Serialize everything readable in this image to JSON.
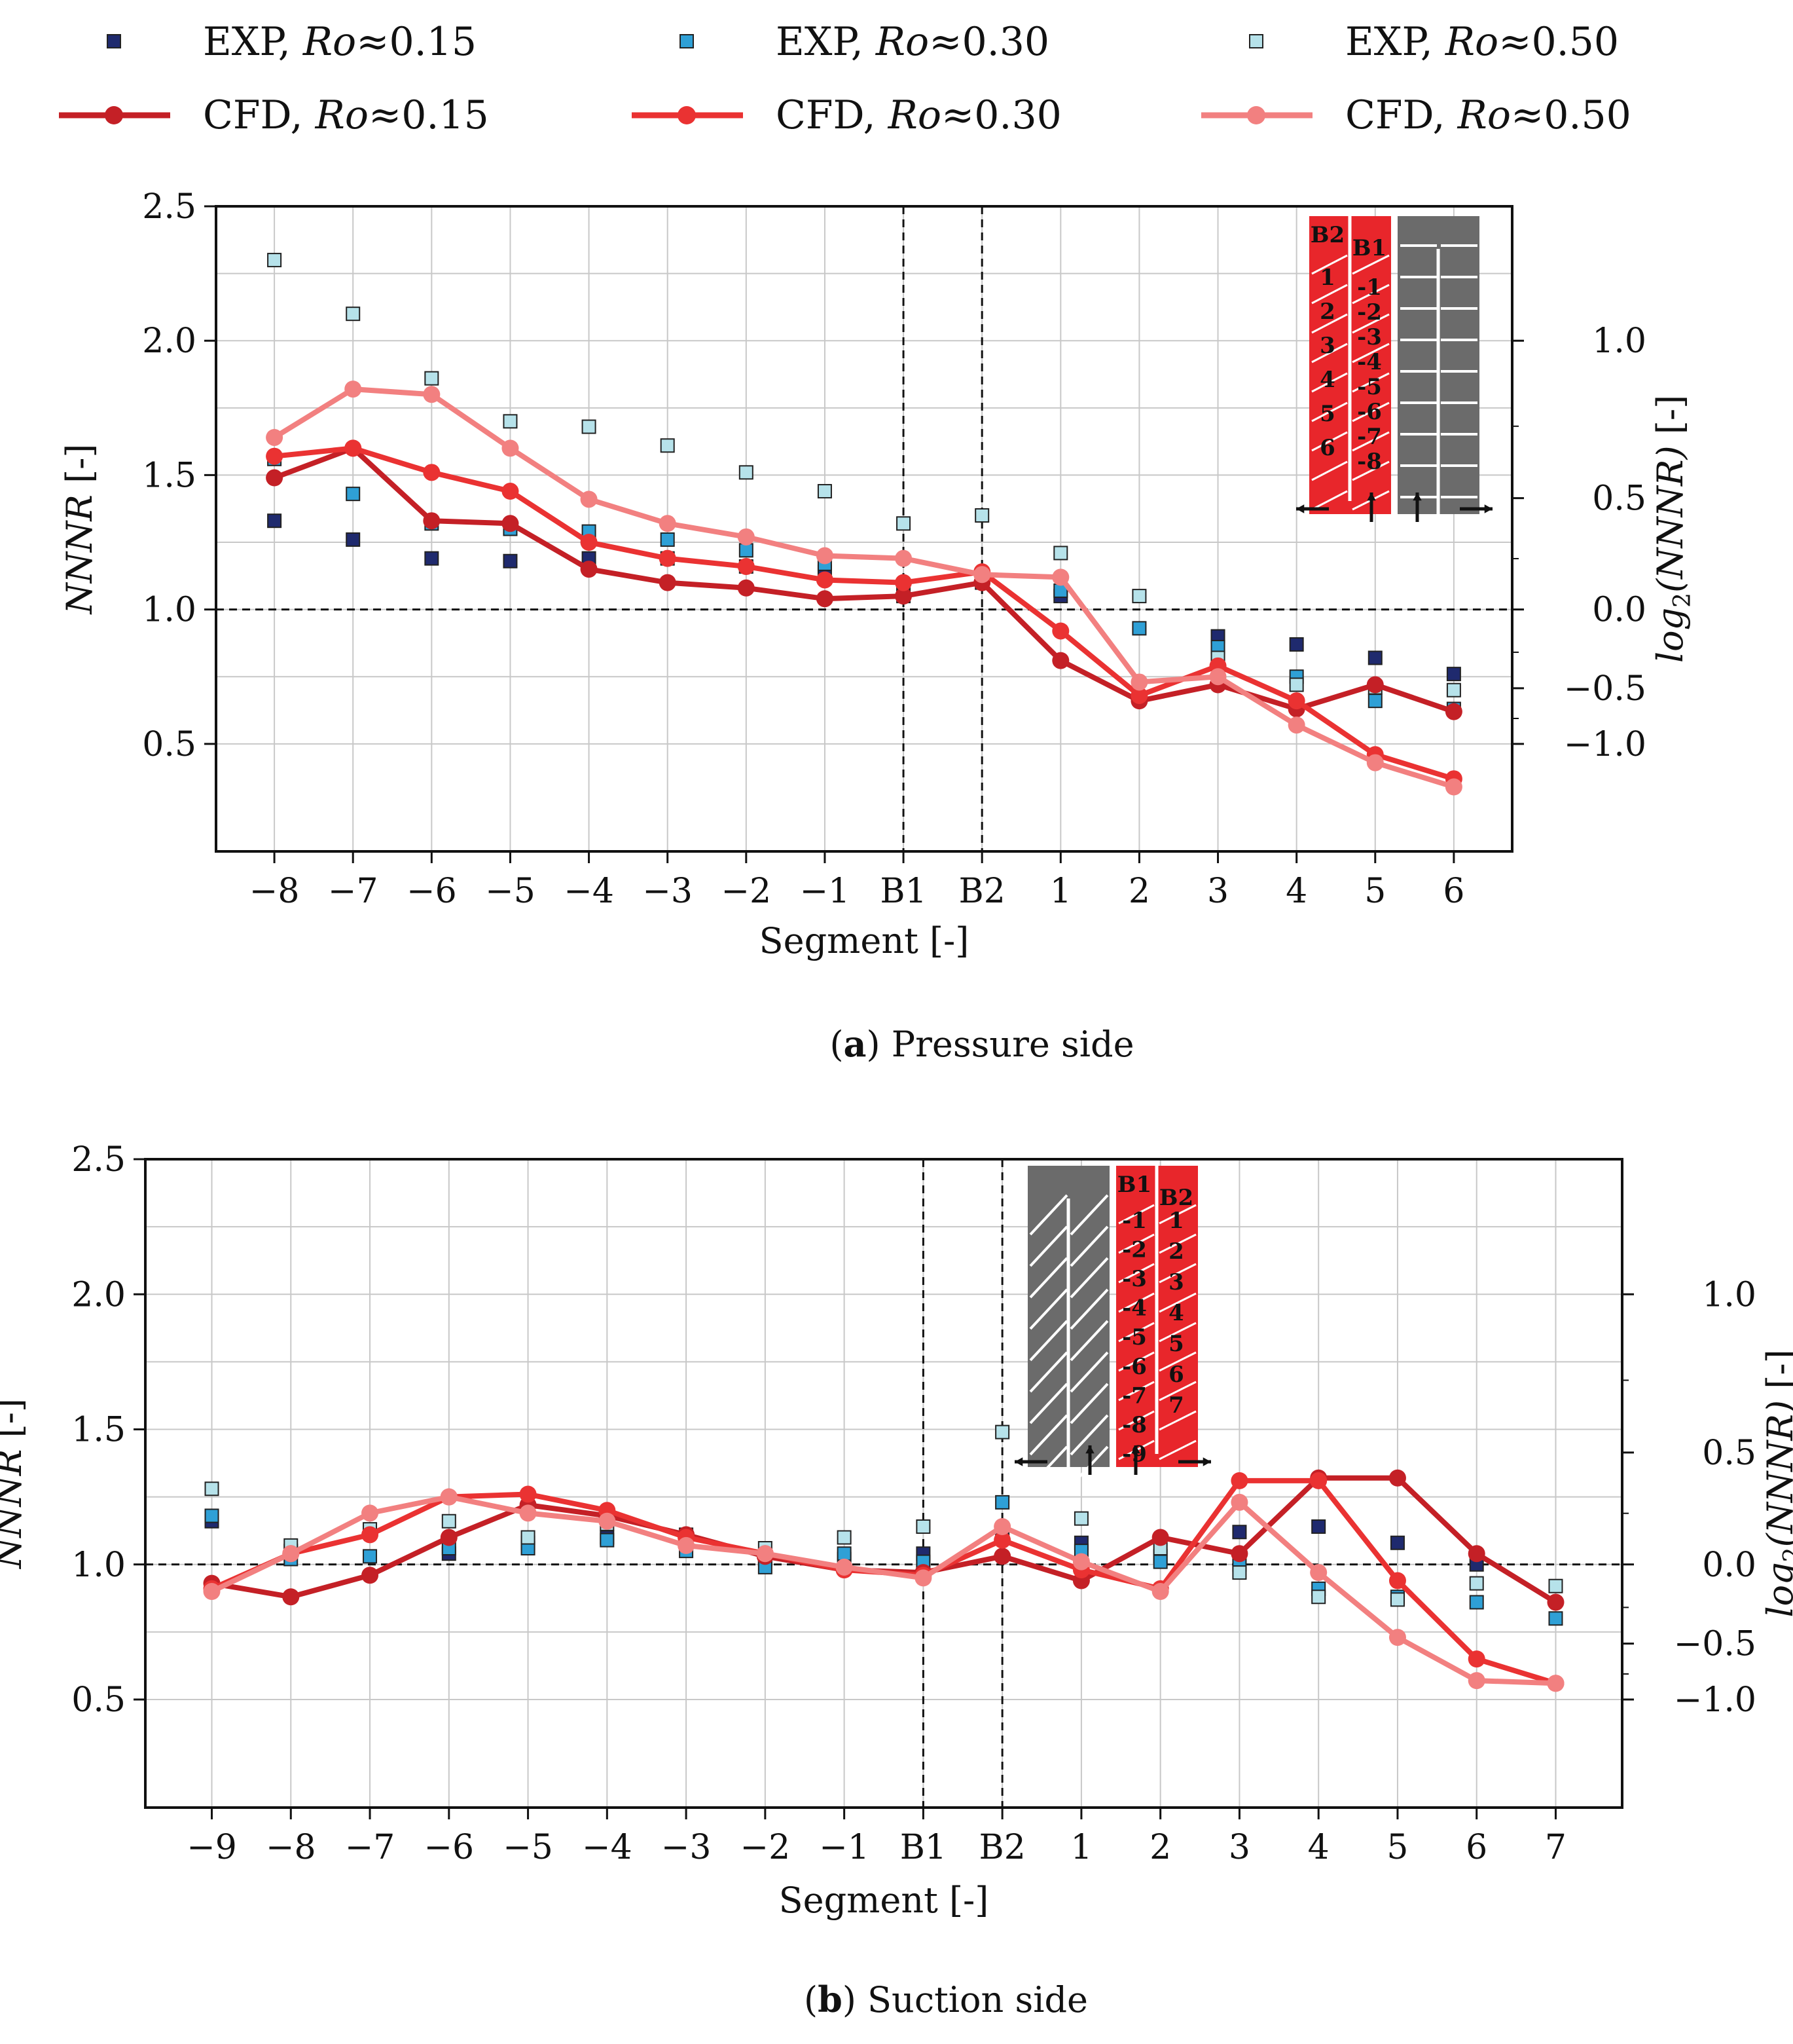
{
  "colors": {
    "exp_015": "#1f2a6e",
    "exp_030": "#2fa0d6",
    "exp_050": "#b6e2ea",
    "cfd_015": "#c42026",
    "cfd_030": "#ea3232",
    "cfd_050": "#f28080",
    "inlet_red": "#e8262b",
    "channel_grey": "#6b6b6b"
  },
  "legend": [
    {
      "kind": "EXP",
      "ro": "Ro",
      "text": "≈0.15",
      "color": "exp_015",
      "label": "EXP, ",
      "marker": "square"
    },
    {
      "kind": "EXP",
      "ro": "Ro",
      "text": "≈0.30",
      "color": "exp_030",
      "label": "EXP, ",
      "marker": "square"
    },
    {
      "kind": "EXP",
      "ro": "Ro",
      "text": "≈0.50",
      "color": "exp_050",
      "label": "EXP, ",
      "marker": "square"
    },
    {
      "kind": "CFD",
      "ro": "Ro",
      "text": "≈0.15",
      "color": "cfd_015",
      "label": "CFD, ",
      "marker": "line-circle"
    },
    {
      "kind": "CFD",
      "ro": "Ro",
      "text": "≈0.30",
      "color": "cfd_030",
      "label": "CFD, ",
      "marker": "line-circle"
    },
    {
      "kind": "CFD",
      "ro": "Ro",
      "text": "≈0.50",
      "color": "cfd_050",
      "label": "CFD, ",
      "marker": "line-circle"
    }
  ],
  "chart_data": [
    {
      "type": "line",
      "caption_letter": "a",
      "caption_text": ") Pressure side",
      "caption_open": "(",
      "xlabel": "Segment [-]",
      "ylabel": "NNNR [-]",
      "y2label_pre": "log",
      "y2label_sub": "2",
      "y2label_post": "(NNNR) [-]",
      "categories": [
        "−8",
        "−7",
        "−6",
        "−5",
        "−4",
        "−3",
        "−2",
        "−1",
        "B1",
        "B2",
        "1",
        "2",
        "3",
        "4",
        "5",
        "6"
      ],
      "ylim": [
        0.1,
        2.5
      ],
      "yticks": [
        "0.5",
        "1.0",
        "1.5",
        "2.0",
        "2.5"
      ],
      "y2ticks": [
        "−1.0",
        "−0.5",
        "0.0",
        "0.5",
        "1.0"
      ],
      "vlines": [
        "B1",
        "B2"
      ],
      "hline": 1.0,
      "grid": true,
      "series": [
        {
          "name": "EXP, Ro≈0.15",
          "kind": "exp",
          "color": "exp_015",
          "values": [
            1.33,
            1.26,
            1.19,
            1.18,
            1.19,
            1.19,
            1.16,
            1.14,
            1.07,
            1.1,
            1.05,
            null,
            0.9,
            0.87,
            0.82,
            0.76
          ]
        },
        {
          "name": "EXP, Ro≈0.30",
          "kind": "exp",
          "color": "exp_030",
          "values": [
            1.56,
            1.43,
            1.32,
            1.3,
            1.29,
            1.26,
            1.22,
            1.17,
            1.05,
            1.13,
            1.07,
            0.93,
            0.86,
            0.75,
            0.66,
            0.63
          ]
        },
        {
          "name": "EXP, Ro≈0.50",
          "kind": "exp",
          "color": "exp_050",
          "values": [
            2.3,
            2.1,
            1.86,
            1.7,
            1.68,
            1.61,
            1.51,
            1.44,
            1.32,
            1.35,
            1.21,
            1.05,
            0.82,
            0.72,
            0.71,
            0.7
          ]
        },
        {
          "name": "CFD, Ro≈0.15",
          "kind": "cfd",
          "color": "cfd_015",
          "values": [
            1.49,
            1.6,
            1.33,
            1.32,
            1.15,
            1.1,
            1.08,
            1.04,
            1.05,
            1.1,
            0.81,
            0.66,
            0.72,
            0.63,
            0.72,
            0.62
          ]
        },
        {
          "name": "CFD, Ro≈0.30",
          "kind": "cfd",
          "color": "cfd_030",
          "values": [
            1.57,
            1.6,
            1.51,
            1.44,
            1.25,
            1.19,
            1.16,
            1.11,
            1.1,
            1.14,
            0.92,
            0.68,
            0.79,
            0.66,
            0.46,
            0.37
          ]
        },
        {
          "name": "CFD, Ro≈0.50",
          "kind": "cfd",
          "color": "cfd_050",
          "values": [
            1.64,
            1.82,
            1.8,
            1.6,
            1.41,
            1.32,
            1.27,
            1.2,
            1.19,
            1.13,
            1.12,
            0.73,
            0.75,
            0.57,
            0.43,
            0.34
          ]
        }
      ],
      "inset": {
        "red_labels_left_header": "B2",
        "red_labels_right_header": "B1",
        "left_col": [
          "1",
          "2",
          "3",
          "4",
          "5",
          "6"
        ],
        "right_col": [
          "-1",
          "-2",
          "-3",
          "-4",
          "-5",
          "-6",
          "-7",
          "-8"
        ]
      }
    },
    {
      "type": "line",
      "caption_letter": "b",
      "caption_text": ") Suction side",
      "caption_open": "(",
      "xlabel": "Segment [-]",
      "ylabel": "NNNR [-]",
      "y2label_pre": "log",
      "y2label_sub": "2",
      "y2label_post": "(NNNR) [-]",
      "categories": [
        "−9",
        "−8",
        "−7",
        "−6",
        "−5",
        "−4",
        "−3",
        "−2",
        "−1",
        "B1",
        "B2",
        "1",
        "2",
        "3",
        "4",
        "5",
        "6",
        "7"
      ],
      "ylim": [
        0.1,
        2.5
      ],
      "yticks": [
        "0.5",
        "1.0",
        "1.5",
        "2.0",
        "2.5"
      ],
      "y2ticks": [
        "−1.0",
        "−0.5",
        "0.0",
        "0.5",
        "1.0"
      ],
      "vlines": [
        "B1",
        "B2"
      ],
      "hline": 1.0,
      "grid": true,
      "series": [
        {
          "name": "EXP, Ro≈0.15",
          "kind": "exp",
          "color": "exp_015",
          "values": [
            1.16,
            1.05,
            null,
            1.04,
            1.08,
            1.1,
            1.09,
            1.02,
            1.02,
            1.04,
            1.12,
            1.08,
            1.03,
            1.12,
            1.14,
            1.08,
            1.0,
            null
          ]
        },
        {
          "name": "EXP, Ro≈0.30",
          "kind": "exp",
          "color": "exp_030",
          "values": [
            1.18,
            1.02,
            1.03,
            1.06,
            1.06,
            1.09,
            1.05,
            0.99,
            1.04,
            1.01,
            1.23,
            1.05,
            1.01,
            1.0,
            0.91,
            0.88,
            0.86,
            0.8
          ]
        },
        {
          "name": "EXP, Ro≈0.50",
          "kind": "exp",
          "color": "exp_050",
          "values": [
            1.28,
            1.07,
            1.13,
            1.16,
            1.1,
            1.15,
            1.11,
            1.06,
            1.1,
            1.14,
            1.49,
            1.17,
            1.06,
            0.97,
            0.88,
            0.87,
            0.93,
            0.92
          ]
        },
        {
          "name": "CFD, Ro≈0.15",
          "kind": "cfd",
          "color": "cfd_015",
          "values": [
            0.93,
            0.88,
            0.96,
            1.1,
            1.22,
            1.18,
            1.11,
            1.03,
            0.98,
            0.97,
            1.03,
            0.94,
            1.1,
            1.04,
            1.32,
            1.32,
            1.04,
            0.86
          ]
        },
        {
          "name": "CFD, Ro≈0.30",
          "kind": "cfd",
          "color": "cfd_030",
          "values": [
            0.91,
            1.04,
            1.11,
            1.25,
            1.26,
            1.2,
            1.1,
            1.04,
            0.98,
            0.96,
            1.09,
            0.98,
            0.91,
            1.31,
            1.31,
            0.94,
            0.65,
            0.56
          ]
        },
        {
          "name": "CFD, Ro≈0.50",
          "kind": "cfd",
          "color": "cfd_050",
          "values": [
            0.9,
            1.04,
            1.19,
            1.25,
            1.19,
            1.16,
            1.07,
            1.04,
            0.99,
            0.95,
            1.14,
            1.01,
            0.9,
            1.23,
            0.97,
            0.73,
            0.57,
            0.56
          ]
        }
      ],
      "inset": {
        "red_labels_left_header": "B1",
        "red_labels_right_header": "B2",
        "left_col": [
          "-1",
          "-2",
          "-3",
          "-4",
          "-5",
          "-6",
          "-7",
          "-8",
          "-9"
        ],
        "right_col": [
          "1",
          "2",
          "3",
          "4",
          "5",
          "6",
          "7"
        ]
      }
    }
  ]
}
